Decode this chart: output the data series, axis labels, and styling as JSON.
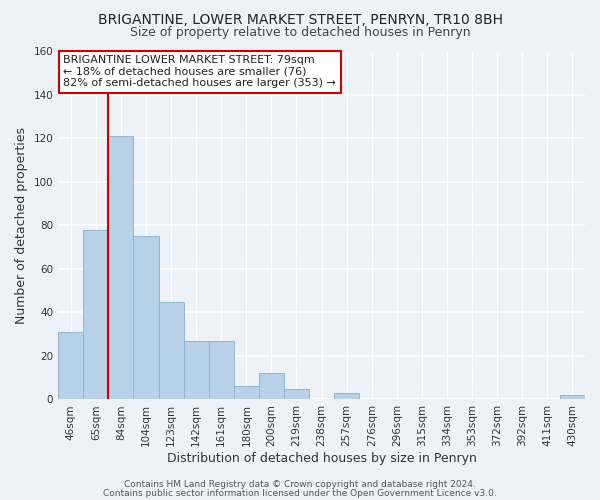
{
  "title": "BRIGANTINE, LOWER MARKET STREET, PENRYN, TR10 8BH",
  "subtitle": "Size of property relative to detached houses in Penryn",
  "xlabel": "Distribution of detached houses by size in Penryn",
  "ylabel": "Number of detached properties",
  "bar_labels": [
    "46sqm",
    "65sqm",
    "84sqm",
    "104sqm",
    "123sqm",
    "142sqm",
    "161sqm",
    "180sqm",
    "200sqm",
    "219sqm",
    "238sqm",
    "257sqm",
    "276sqm",
    "296sqm",
    "315sqm",
    "334sqm",
    "353sqm",
    "372sqm",
    "392sqm",
    "411sqm",
    "430sqm"
  ],
  "bar_values": [
    31,
    78,
    121,
    75,
    45,
    27,
    27,
    6,
    12,
    5,
    0,
    3,
    0,
    0,
    0,
    0,
    0,
    0,
    0,
    0,
    2
  ],
  "bar_color": "#b8d0e8",
  "bar_edge_color": "#93b5d0",
  "vline_x_index": 2,
  "vline_color": "#cc0000",
  "ylim": [
    0,
    160
  ],
  "yticks": [
    0,
    20,
    40,
    60,
    80,
    100,
    120,
    140,
    160
  ],
  "annotation_line1": "BRIGANTINE LOWER MARKET STREET: 79sqm",
  "annotation_line2": "← 18% of detached houses are smaller (76)",
  "annotation_line3": "82% of semi-detached houses are larger (353) →",
  "annotation_box_color": "#ffffff",
  "annotation_box_edgecolor": "#cc0000",
  "footer_line1": "Contains HM Land Registry data © Crown copyright and database right 2024.",
  "footer_line2": "Contains public sector information licensed under the Open Government Licence v3.0.",
  "background_color": "#edf2f9",
  "title_fontsize": 10,
  "subtitle_fontsize": 9,
  "axis_label_fontsize": 9,
  "tick_fontsize": 7.5,
  "annotation_fontsize": 8,
  "footer_fontsize": 6.5
}
